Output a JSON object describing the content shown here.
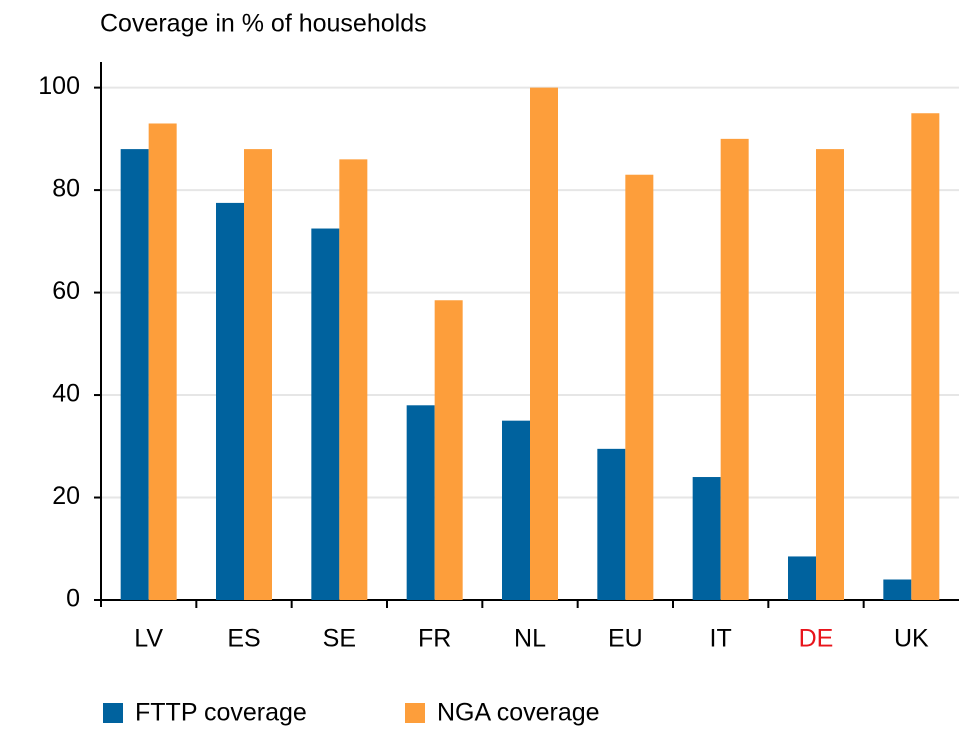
{
  "chart_data": {
    "type": "bar",
    "title": "Coverage in % of households",
    "categories": [
      "LV",
      "ES",
      "SE",
      "FR",
      "NL",
      "EU",
      "IT",
      "DE",
      "UK"
    ],
    "category_colors": [
      "#000000",
      "#000000",
      "#000000",
      "#000000",
      "#000000",
      "#000000",
      "#000000",
      "#e8141b",
      "#000000"
    ],
    "series": [
      {
        "name": "FTTP coverage",
        "color": "#00629e",
        "values": [
          88,
          77.5,
          72.5,
          38,
          35,
          29.5,
          24,
          8.5,
          4
        ]
      },
      {
        "name": "NGA coverage",
        "color": "#fd9e3b",
        "values": [
          93,
          88,
          86,
          58.5,
          100,
          83,
          90,
          88,
          95
        ]
      }
    ],
    "ylim": [
      0,
      105
    ],
    "yticks": [
      0,
      20,
      40,
      60,
      80,
      100
    ],
    "grid": true,
    "legend": "bottom"
  }
}
